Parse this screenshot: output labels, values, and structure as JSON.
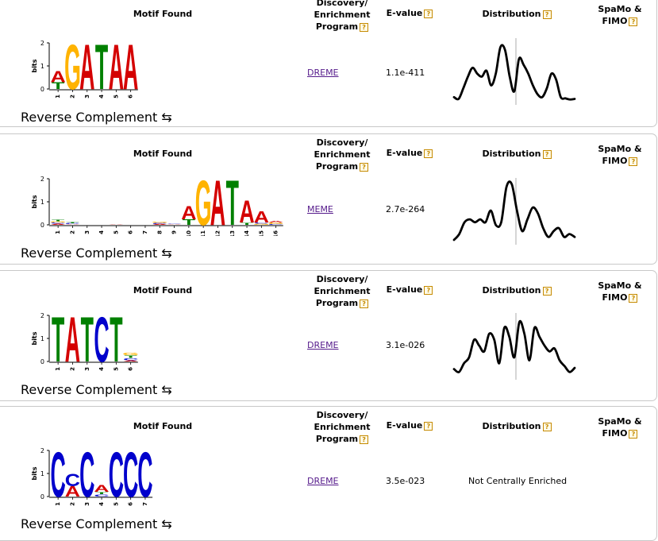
{
  "headers": {
    "motif_found": "Motif Found",
    "discovery_line1": "Discovery/",
    "discovery_line2": "Enrichment",
    "discovery_line3": "Program",
    "evalue": "E-value",
    "distribution": "Distribution",
    "spamo_line1": "SpaMo &",
    "spamo_line2": "FIMO",
    "help_glyph": "?"
  },
  "logo_axis": {
    "ylabel": "bits",
    "ticks": [
      "0",
      "1",
      "2"
    ]
  },
  "reverse_complement_label": "Reverse Complement ⇆",
  "nucleotide_colors": {
    "A": "#d40000",
    "C": "#0000cc",
    "G": "#ffb300",
    "T": "#008000"
  },
  "motifs": [
    {
      "program": "DREME",
      "evalue": "1.1e-411",
      "positions": [
        "1",
        "2",
        "3",
        "4",
        "5",
        "6"
      ],
      "logo_columns": [
        {
          "stack": [
            [
              "T",
              0.3
            ],
            [
              "A",
              0.5
            ]
          ]
        },
        {
          "stack": [
            [
              "G",
              2.0
            ]
          ]
        },
        {
          "stack": [
            [
              "A",
              2.0
            ]
          ]
        },
        {
          "stack": [
            [
              "T",
              2.0
            ]
          ]
        },
        {
          "stack": [
            [
              "A",
              2.0
            ]
          ]
        },
        {
          "stack": [
            [
              "A",
              2.0
            ]
          ]
        }
      ],
      "distribution": {
        "centered": true,
        "values": [
          0.05,
          0.02,
          0.2,
          0.4,
          0.55,
          0.45,
          0.4,
          0.5,
          0.25,
          0.45,
          0.9,
          0.85,
          0.4,
          0.15,
          0.7,
          0.6,
          0.45,
          0.25,
          0.1,
          0.05,
          0.2,
          0.45,
          0.35,
          0.05,
          0.03,
          0.01,
          0.02
        ]
      }
    },
    {
      "program": "MEME",
      "evalue": "2.7e-264",
      "positions": [
        "1",
        "2",
        "3",
        "4",
        "5",
        "6",
        "7",
        "8",
        "9",
        "10",
        "11",
        "12",
        "13",
        "14",
        "15",
        "16"
      ],
      "logo_columns": [
        {
          "stack": [
            [
              "A",
              0.05
            ],
            [
              "C",
              0.05
            ],
            [
              "G",
              0.05
            ],
            [
              "T",
              0.06
            ]
          ]
        },
        {
          "stack": [
            [
              "A",
              0.03
            ],
            [
              "C",
              0.04
            ],
            [
              "T",
              0.04
            ]
          ]
        },
        {
          "stack": []
        },
        {
          "stack": []
        },
        {
          "stack": [
            [
              "A",
              0.03
            ]
          ]
        },
        {
          "stack": []
        },
        {
          "stack": []
        },
        {
          "stack": [
            [
              "A",
              0.04
            ],
            [
              "C",
              0.04
            ],
            [
              "G",
              0.05
            ]
          ]
        },
        {
          "stack": [
            [
              "A",
              0.03
            ],
            [
              "C",
              0.03
            ]
          ]
        },
        {
          "stack": [
            [
              "T",
              0.25
            ],
            [
              "A",
              0.6
            ]
          ]
        },
        {
          "stack": [
            [
              "G",
              2.0
            ]
          ]
        },
        {
          "stack": [
            [
              "A",
              2.0
            ]
          ]
        },
        {
          "stack": [
            [
              "T",
              2.0
            ]
          ]
        },
        {
          "stack": [
            [
              "T",
              0.1
            ],
            [
              "A",
              1.0
            ]
          ]
        },
        {
          "stack": [
            [
              "G",
              0.05
            ],
            [
              "C",
              0.05
            ],
            [
              "A",
              0.5
            ]
          ]
        },
        {
          "stack": [
            [
              "C",
              0.04
            ],
            [
              "G",
              0.06
            ],
            [
              "A",
              0.06
            ]
          ]
        }
      ],
      "distribution": {
        "centered": true,
        "values": [
          0.0,
          0.1,
          0.3,
          0.35,
          0.3,
          0.35,
          0.3,
          0.5,
          0.25,
          0.3,
          0.9,
          0.95,
          0.5,
          0.15,
          0.35,
          0.55,
          0.45,
          0.2,
          0.05,
          0.15,
          0.2,
          0.05,
          0.1,
          0.05
        ]
      }
    },
    {
      "program": "DREME",
      "evalue": "3.1e-026",
      "positions": [
        "1",
        "2",
        "3",
        "4",
        "5",
        "6"
      ],
      "logo_columns": [
        {
          "stack": [
            [
              "T",
              2.0
            ]
          ]
        },
        {
          "stack": [
            [
              "A",
              2.0
            ]
          ]
        },
        {
          "stack": [
            [
              "T",
              2.0
            ]
          ]
        },
        {
          "stack": [
            [
              "C",
              2.0
            ]
          ]
        },
        {
          "stack": [
            [
              "T",
              2.0
            ]
          ]
        },
        {
          "stack": [
            [
              "A",
              0.05
            ],
            [
              "C",
              0.1
            ],
            [
              "T",
              0.12
            ],
            [
              "G",
              0.12
            ]
          ]
        }
      ],
      "distribution": {
        "centered": true,
        "values": [
          0.1,
          0.05,
          0.2,
          0.3,
          0.6,
          0.5,
          0.4,
          0.7,
          0.6,
          0.2,
          0.8,
          0.65,
          0.3,
          0.9,
          0.7,
          0.25,
          0.8,
          0.65,
          0.5,
          0.4,
          0.45,
          0.25,
          0.15,
          0.05,
          0.12
        ]
      }
    },
    {
      "program": "DREME",
      "evalue": "3.5e-023",
      "positions": [
        "1",
        "2",
        "3",
        "4",
        "5",
        "6",
        "7"
      ],
      "logo_columns": [
        {
          "stack": [
            [
              "C",
              2.0
            ]
          ]
        },
        {
          "stack": [
            [
              "A",
              0.45
            ],
            [
              "C",
              0.55
            ]
          ]
        },
        {
          "stack": [
            [
              "C",
              2.0
            ]
          ]
        },
        {
          "stack": [
            [
              "C",
              0.1
            ],
            [
              "T",
              0.1
            ],
            [
              "A",
              0.3
            ]
          ]
        },
        {
          "stack": [
            [
              "C",
              2.0
            ]
          ]
        },
        {
          "stack": [
            [
              "C",
              2.0
            ]
          ]
        },
        {
          "stack": [
            [
              "C",
              2.0
            ]
          ]
        }
      ],
      "distribution": {
        "centered": false,
        "label": "Not Centrally Enriched",
        "values": []
      }
    }
  ]
}
